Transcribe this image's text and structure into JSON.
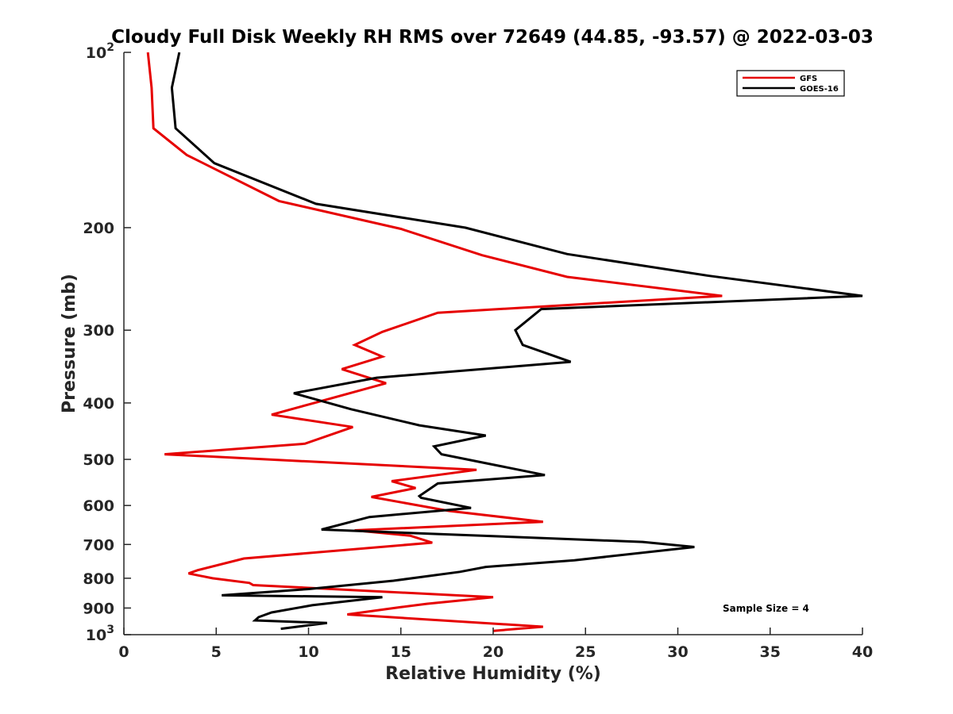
{
  "chart_data": {
    "type": "line",
    "title": "Cloudy Full Disk Weekly RH RMS over 72649 (44.85, -93.57) @ 2022-03-03",
    "xlabel": "Relative Humidity (%)",
    "ylabel": "Pressure (mb)",
    "xlim": [
      0,
      40
    ],
    "ylim": [
      100,
      1000
    ],
    "y_scale": "log",
    "y_reversed": true,
    "x_ticks": [
      0,
      5,
      10,
      15,
      20,
      25,
      30,
      35,
      40
    ],
    "y_ticks": [
      {
        "value": 100,
        "label": "10",
        "sup": "2"
      },
      {
        "value": 200,
        "label": "200"
      },
      {
        "value": 300,
        "label": "300"
      },
      {
        "value": 400,
        "label": "400"
      },
      {
        "value": 500,
        "label": "500"
      },
      {
        "value": 600,
        "label": "600"
      },
      {
        "value": 700,
        "label": "700"
      },
      {
        "value": 800,
        "label": "800"
      },
      {
        "value": 900,
        "label": "900"
      },
      {
        "value": 1000,
        "label": "10",
        "sup": "3"
      }
    ],
    "legend_position": "top-right",
    "annotation": "Sample Size = 4",
    "series": [
      {
        "name": "GFS",
        "color": "#e60000",
        "points": [
          [
            1.3,
            100
          ],
          [
            1.5,
            115
          ],
          [
            1.6,
            135
          ],
          [
            3.4,
            150
          ],
          [
            8.4,
            180
          ],
          [
            15.0,
            201
          ],
          [
            19.4,
            223
          ],
          [
            24.0,
            243
          ],
          [
            32.4,
            262
          ],
          [
            17.0,
            280
          ],
          [
            14.0,
            302
          ],
          [
            12.5,
            318
          ],
          [
            14.0,
            333
          ],
          [
            11.8,
            350
          ],
          [
            14.2,
            370
          ],
          [
            8.0,
            419
          ],
          [
            12.4,
            440
          ],
          [
            9.8,
            470
          ],
          [
            2.2,
            490
          ],
          [
            19.1,
            521
          ],
          [
            14.5,
            545
          ],
          [
            15.8,
            560
          ],
          [
            13.4,
            580
          ],
          [
            17.6,
            613
          ],
          [
            22.7,
            640
          ],
          [
            12.5,
            662
          ],
          [
            15.5,
            676
          ],
          [
            16.7,
            695
          ],
          [
            6.5,
            740
          ],
          [
            4.0,
            775
          ],
          [
            3.5,
            785
          ],
          [
            4.8,
            800
          ],
          [
            6.8,
            815
          ],
          [
            7.0,
            822
          ],
          [
            20.0,
            862
          ],
          [
            16.4,
            885
          ],
          [
            15.0,
            897
          ],
          [
            12.1,
            923
          ],
          [
            22.7,
            969
          ],
          [
            20.0,
            985
          ]
        ]
      },
      {
        "name": "GOES-16",
        "color": "#000000",
        "points": [
          [
            3.0,
            100
          ],
          [
            2.6,
            115
          ],
          [
            2.8,
            135
          ],
          [
            4.9,
            155
          ],
          [
            10.4,
            182
          ],
          [
            18.5,
            200
          ],
          [
            24.0,
            222
          ],
          [
            31.7,
            242
          ],
          [
            40.0,
            262
          ],
          [
            22.6,
            276
          ],
          [
            21.2,
            300
          ],
          [
            21.6,
            318
          ],
          [
            24.2,
            340
          ],
          [
            13.7,
            362
          ],
          [
            9.2,
            385
          ],
          [
            12.3,
            410
          ],
          [
            16.0,
            437
          ],
          [
            19.6,
            455
          ],
          [
            16.8,
            475
          ],
          [
            17.2,
            490
          ],
          [
            20.2,
            512
          ],
          [
            22.8,
            532
          ],
          [
            17.0,
            550
          ],
          [
            16.0,
            578
          ],
          [
            16.1,
            582
          ],
          [
            18.8,
            606
          ],
          [
            13.3,
            628
          ],
          [
            10.7,
            660
          ],
          [
            28.1,
            693
          ],
          [
            30.9,
            707
          ],
          [
            24.4,
            745
          ],
          [
            19.6,
            765
          ],
          [
            18.2,
            780
          ],
          [
            14.6,
            808
          ],
          [
            10.0,
            835
          ],
          [
            5.3,
            856
          ],
          [
            14.0,
            862
          ],
          [
            10.2,
            890
          ],
          [
            8.0,
            916
          ],
          [
            7.3,
            933
          ],
          [
            7.1,
            945
          ],
          [
            11.0,
            955
          ],
          [
            8.5,
            977
          ]
        ]
      }
    ]
  }
}
